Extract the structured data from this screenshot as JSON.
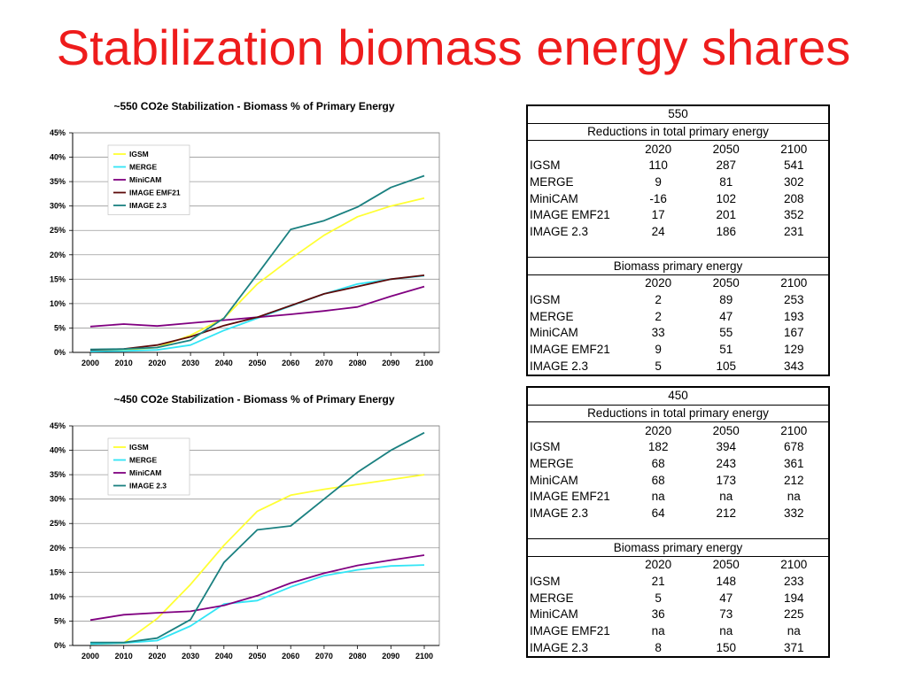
{
  "slide": {
    "title": "Stabilization biomass energy shares"
  },
  "chart_data": [
    {
      "type": "line",
      "title": "~550 CO2e Stabilization - Biomass % of Primary Energy",
      "xlabel": "",
      "ylabel": "",
      "x": [
        2000,
        2010,
        2020,
        2030,
        2040,
        2050,
        2060,
        2070,
        2080,
        2090,
        2100
      ],
      "ylim": [
        0,
        45
      ],
      "y_ticks": [
        "0%",
        "5%",
        "10%",
        "15%",
        "20%",
        "25%",
        "30%",
        "35%",
        "40%",
        "45%"
      ],
      "grid": "horizontal",
      "legend": "top-left, inside plot area",
      "series": [
        {
          "name": "IGSM",
          "color": "#ffff33",
          "values": [
            0.3,
            0.5,
            1.0,
            3.5,
            7.0,
            14.0,
            19.2,
            24.0,
            27.8,
            30.0,
            31.6
          ]
        },
        {
          "name": "MERGE",
          "color": "#33e5f5",
          "values": [
            0.2,
            0.3,
            0.5,
            1.5,
            4.5,
            7.0,
            9.5,
            12.0,
            14.0,
            15.0,
            15.7
          ]
        },
        {
          "name": "MiniCAM",
          "color": "#800080",
          "values": [
            5.3,
            5.8,
            5.4,
            6.0,
            6.6,
            7.2,
            7.8,
            8.5,
            9.3,
            11.5,
            13.5
          ]
        },
        {
          "name": "IMAGE EMF21",
          "color": "#5c0a0a",
          "values": [
            0.5,
            0.7,
            1.5,
            3.2,
            5.5,
            7.2,
            9.6,
            12.0,
            13.5,
            15.0,
            15.8
          ]
        },
        {
          "name": "IMAGE 2.3",
          "color": "#1a8080",
          "values": [
            0.6,
            0.7,
            1.0,
            2.5,
            7.0,
            16.0,
            25.2,
            27.0,
            29.8,
            33.8,
            36.2
          ]
        }
      ]
    },
    {
      "type": "line",
      "title": "~450 CO2e Stabilization - Biomass % of Primary Energy",
      "xlabel": "",
      "ylabel": "",
      "x": [
        2000,
        2010,
        2020,
        2030,
        2040,
        2050,
        2060,
        2070,
        2080,
        2090,
        2100
      ],
      "ylim": [
        0,
        45
      ],
      "y_ticks": [
        "0%",
        "5%",
        "10%",
        "15%",
        "20%",
        "25%",
        "30%",
        "35%",
        "40%",
        "45%"
      ],
      "grid": "horizontal",
      "legend": "top-left, inside plot area",
      "series": [
        {
          "name": "IGSM",
          "color": "#ffff33",
          "values": [
            0.3,
            0.5,
            5.5,
            12.5,
            20.5,
            27.5,
            30.8,
            32.0,
            33.0,
            34.0,
            35.0
          ]
        },
        {
          "name": "MERGE",
          "color": "#33e5f5",
          "values": [
            0.3,
            0.5,
            1.0,
            4.0,
            8.5,
            9.2,
            12.0,
            14.3,
            15.5,
            16.3,
            16.5
          ]
        },
        {
          "name": "MiniCAM",
          "color": "#800080",
          "values": [
            5.2,
            6.3,
            6.7,
            7.0,
            8.2,
            10.2,
            12.8,
            14.8,
            16.4,
            17.5,
            18.5
          ]
        },
        {
          "name": "IMAGE 2.3",
          "color": "#1a8080",
          "values": [
            0.6,
            0.6,
            1.5,
            5.3,
            17.0,
            23.7,
            24.5,
            30.0,
            35.5,
            40.0,
            43.6
          ]
        }
      ]
    }
  ],
  "tables": {
    "t550": {
      "title": "550",
      "reductions_title": "Reductions in total primary energy",
      "biomass_title": "Biomass primary energy",
      "years": [
        "2020",
        "2050",
        "2100"
      ],
      "reductions": [
        {
          "model": "IGSM",
          "values": [
            "110",
            "287",
            "541"
          ]
        },
        {
          "model": "MERGE",
          "values": [
            "9",
            "81",
            "302"
          ]
        },
        {
          "model": "MiniCAM",
          "values": [
            "-16",
            "102",
            "208"
          ]
        },
        {
          "model": "IMAGE EMF21",
          "values": [
            "17",
            "201",
            "352"
          ]
        },
        {
          "model": "IMAGE 2.3",
          "values": [
            "24",
            "186",
            "231"
          ]
        }
      ],
      "biomass": [
        {
          "model": "IGSM",
          "values": [
            "2",
            "89",
            "253"
          ]
        },
        {
          "model": "MERGE",
          "values": [
            "2",
            "47",
            "193"
          ]
        },
        {
          "model": "MiniCAM",
          "values": [
            "33",
            "55",
            "167"
          ]
        },
        {
          "model": "IMAGE EMF21",
          "values": [
            "9",
            "51",
            "129"
          ]
        },
        {
          "model": "IMAGE 2.3",
          "values": [
            "5",
            "105",
            "343"
          ]
        }
      ]
    },
    "t450": {
      "title": "450",
      "reductions_title": "Reductions in total primary energy",
      "biomass_title": "Biomass primary energy",
      "years": [
        "2020",
        "2050",
        "2100"
      ],
      "reductions": [
        {
          "model": "IGSM",
          "values": [
            "182",
            "394",
            "678"
          ]
        },
        {
          "model": "MERGE",
          "values": [
            "68",
            "243",
            "361"
          ]
        },
        {
          "model": "MiniCAM",
          "values": [
            "68",
            "173",
            "212"
          ]
        },
        {
          "model": "IMAGE EMF21",
          "values": [
            "na",
            "na",
            "na"
          ]
        },
        {
          "model": "IMAGE 2.3",
          "values": [
            "64",
            "212",
            "332"
          ]
        }
      ],
      "biomass": [
        {
          "model": "IGSM",
          "values": [
            "21",
            "148",
            "233"
          ]
        },
        {
          "model": "MERGE",
          "values": [
            "5",
            "47",
            "194"
          ]
        },
        {
          "model": "MiniCAM",
          "values": [
            "36",
            "73",
            "225"
          ]
        },
        {
          "model": "IMAGE EMF21",
          "values": [
            "na",
            "na",
            "na"
          ]
        },
        {
          "model": "IMAGE 2.3",
          "values": [
            "8",
            "150",
            "371"
          ]
        }
      ]
    }
  }
}
